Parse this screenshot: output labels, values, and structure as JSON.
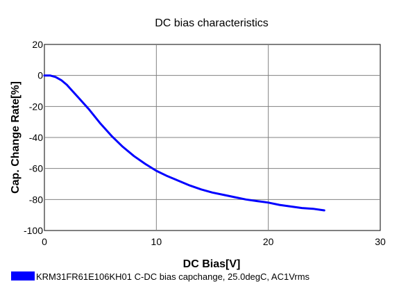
{
  "chart_data": {
    "type": "line",
    "title": "DC bias characteristics",
    "xlabel": "DC Bias[V]",
    "ylabel": "Cap. Change Rate[%]",
    "xlim": [
      0,
      30
    ],
    "ylim": [
      -100,
      20
    ],
    "xticks": [
      0,
      10,
      20,
      30
    ],
    "yticks": [
      -100,
      -80,
      -60,
      -40,
      -20,
      0,
      20
    ],
    "grid": true,
    "legend_position": "bottom-left",
    "series": [
      {
        "name": "KRM31FR61E106KH01 C-DC bias capchange, 25.0degC, AC1Vrms",
        "color": "#0000ff",
        "x": [
          0,
          0.5,
          1,
          1.5,
          2,
          2.5,
          3,
          3.5,
          4,
          5,
          6,
          7,
          8,
          9,
          10,
          11,
          12,
          13,
          14,
          15,
          16,
          17,
          18,
          19,
          20,
          21,
          22,
          23,
          24,
          25
        ],
        "y": [
          0,
          0,
          -1,
          -3,
          -6,
          -10,
          -14,
          -18,
          -22,
          -31,
          -39,
          -46,
          -52,
          -57,
          -61.5,
          -65,
          -68,
          -71,
          -73.5,
          -75.5,
          -77,
          -78.5,
          -80,
          -81,
          -82,
          -83.5,
          -84.5,
          -85.5,
          -86,
          -87
        ]
      }
    ]
  }
}
